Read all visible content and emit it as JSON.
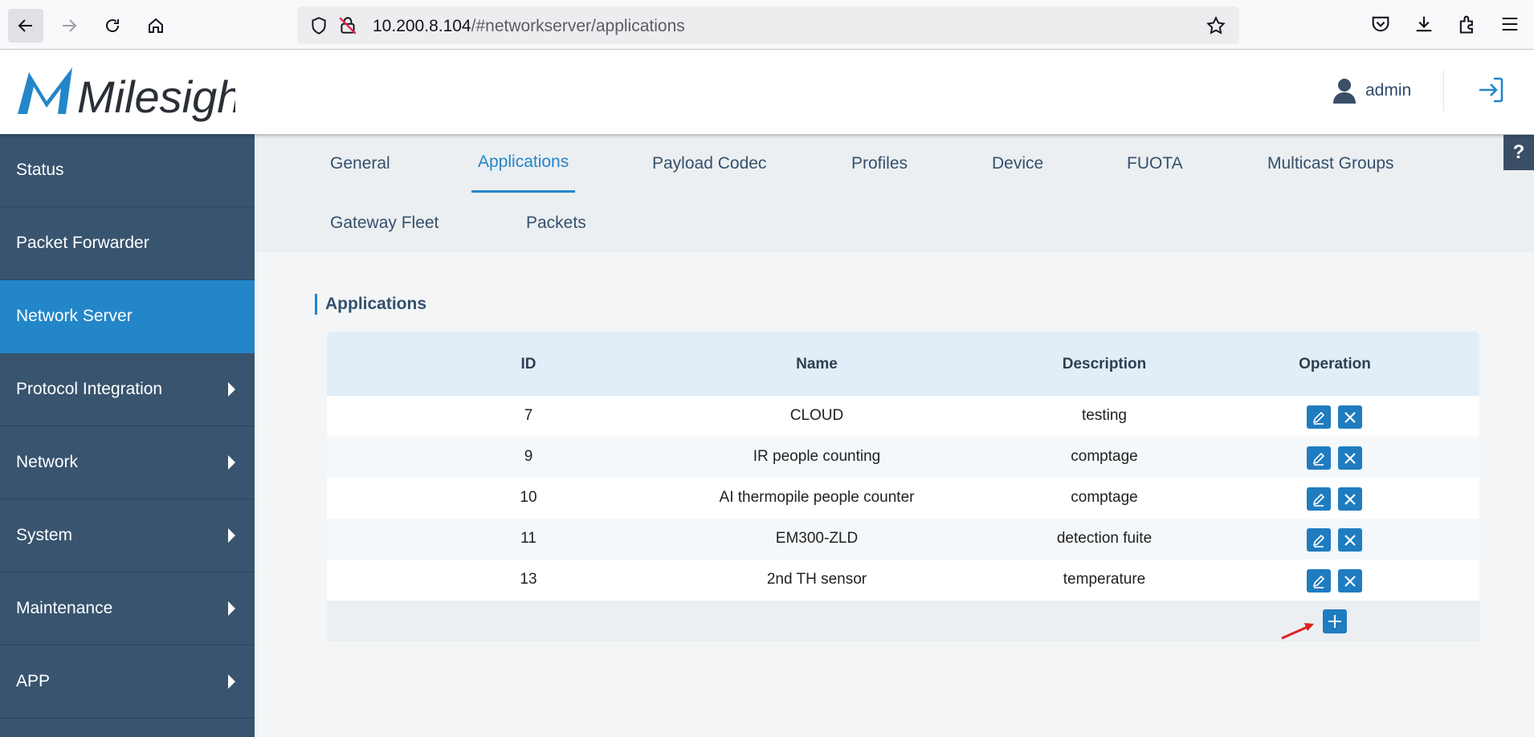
{
  "browser": {
    "url_host": "10.200.8.104",
    "url_path": "/#networkserver/applications"
  },
  "header": {
    "logo_text": "Milesight",
    "username": "admin"
  },
  "sidebar": {
    "items": [
      {
        "label": "Status",
        "has_submenu": false
      },
      {
        "label": "Packet Forwarder",
        "has_submenu": false
      },
      {
        "label": "Network Server",
        "has_submenu": false,
        "active": true
      },
      {
        "label": "Protocol Integration",
        "has_submenu": true
      },
      {
        "label": "Network",
        "has_submenu": true
      },
      {
        "label": "System",
        "has_submenu": true
      },
      {
        "label": "Maintenance",
        "has_submenu": true
      },
      {
        "label": "APP",
        "has_submenu": true
      }
    ]
  },
  "tabs": [
    {
      "label": "General"
    },
    {
      "label": "Applications",
      "active": true
    },
    {
      "label": "Payload Codec"
    },
    {
      "label": "Profiles"
    },
    {
      "label": "Device"
    },
    {
      "label": "FUOTA"
    },
    {
      "label": "Multicast Groups"
    },
    {
      "label": "Gateway Fleet"
    },
    {
      "label": "Packets"
    }
  ],
  "help_label": "?",
  "main": {
    "section_title": "Applications",
    "table": {
      "columns": [
        "ID",
        "Name",
        "Description",
        "Operation"
      ],
      "rows": [
        {
          "id": "7",
          "name": "CLOUD",
          "description": "testing"
        },
        {
          "id": "9",
          "name": "IR people counting",
          "description": "comptage"
        },
        {
          "id": "10",
          "name": "AI thermopile people counter",
          "description": "comptage"
        },
        {
          "id": "11",
          "name": "EM300-ZLD",
          "description": "detection fuite"
        },
        {
          "id": "13",
          "name": "2nd TH sensor",
          "description": "temperature"
        }
      ]
    }
  },
  "colors": {
    "accent": "#2386c8",
    "sidebar": "#38546f",
    "button": "#1f7cc0",
    "annotation_arrow": "#e02020"
  },
  "icons": {
    "edit": "pencil-icon",
    "delete": "close-icon",
    "add": "plus-icon"
  }
}
